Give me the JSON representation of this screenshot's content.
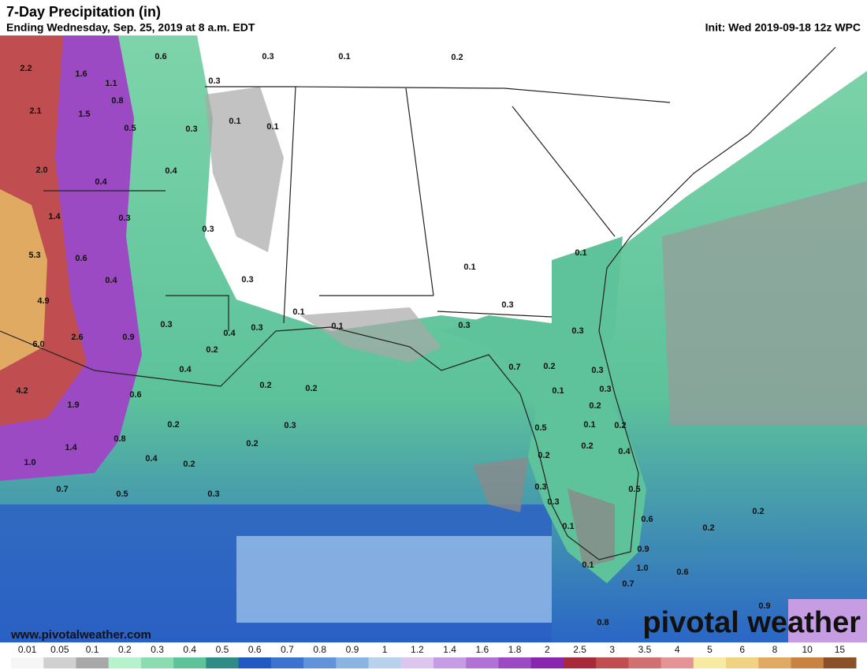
{
  "header": {
    "title": "7-Day Precipitation (in)",
    "subtitle": "Ending Wednesday, Sep. 25, 2019 at 8 a.m. EDT",
    "init": "Init: Wed 2019-09-18 12z WPC"
  },
  "map_labels": [
    "2.2",
    "1.6",
    "1.1",
    "0.8",
    "2.1",
    "1.5",
    "0.5",
    "2.0",
    "0.4",
    "1.4",
    "0.3",
    "5.3",
    "0.6",
    "0.4",
    "4.9",
    "0.9",
    "2.6",
    "6.0",
    "0.6",
    "4.2",
    "1.9",
    "0.8",
    "1.4",
    "1.0",
    "0.7",
    "0.5",
    "0.6",
    "0.3",
    "0.1",
    "0.2",
    "0.3",
    "0.3",
    "0.1",
    "0.1",
    "0.4",
    "0.3",
    "0.3",
    "0.3",
    "0.4",
    "0.3",
    "0.1",
    "0.1",
    "0.2",
    "0.4",
    "0.2",
    "0.2",
    "0.2",
    "0.3",
    "0.2",
    "0.4",
    "0.2",
    "0.3",
    "0.1",
    "0.3",
    "0.3",
    "0.7",
    "0.2",
    "0.1",
    "0.1",
    "0.3",
    "0.3",
    "0.3",
    "0.2",
    "0.5",
    "0.1",
    "0.2",
    "0.2",
    "0.4",
    "0.2",
    "0.3",
    "0.3",
    "0.5",
    "0.6",
    "0.9",
    "1.0",
    "0.7",
    "0.1",
    "0.6",
    "0.2",
    "0.2",
    "0.9",
    "0.8",
    "0.1"
  ],
  "footer": {
    "website": "www.pivotalweather.com",
    "brand": "pivotal weather"
  },
  "colorbar": {
    "labels": [
      "0.01",
      "0.05",
      "0.1",
      "0.2",
      "0.3",
      "0.4",
      "0.5",
      "0.6",
      "0.7",
      "0.8",
      "0.9",
      "1",
      "1.2",
      "1.4",
      "1.6",
      "1.8",
      "2",
      "2.5",
      "3",
      "3.5",
      "4",
      "5",
      "6",
      "8",
      "10",
      "15"
    ],
    "colors": [
      "#f6f6f6",
      "#d0d0d0",
      "#a8a8a8",
      "#b8f2cc",
      "#8cdcb2",
      "#5ec29a",
      "#2e8c84",
      "#2258c4",
      "#3e72d0",
      "#6292da",
      "#8cb4e2",
      "#b8d2ee",
      "#dcc6ee",
      "#c69ce2",
      "#b072d4",
      "#9c4ac4",
      "#8826b0",
      "#a82a3a",
      "#c04e50",
      "#d07070",
      "#e49494",
      "#f8eaa2",
      "#f0d282",
      "#e0aa62",
      "#c88242",
      "#8a5028"
    ]
  }
}
